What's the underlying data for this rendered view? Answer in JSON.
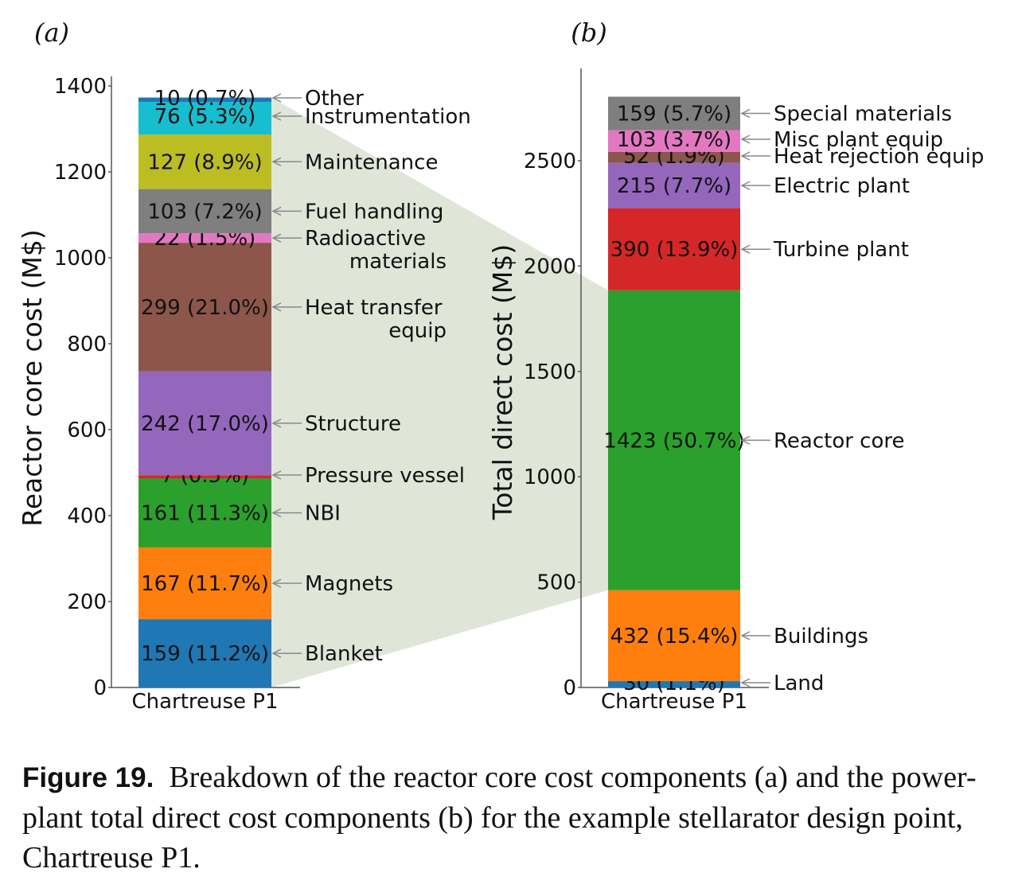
{
  "chart_data": [
    {
      "type": "bar",
      "stacked": true,
      "panel": "(a)",
      "title": "",
      "xlabel": "",
      "ylabel": "Reactor core cost (M$)",
      "categories": [
        "Chartreuse P1"
      ],
      "ylim": [
        0,
        1400
      ],
      "yticks": [
        0,
        200,
        400,
        600,
        800,
        1000,
        1200,
        1400
      ],
      "grid": false,
      "series": [
        {
          "name": "Blanket",
          "values": [
            159
          ],
          "pct": "11.2%",
          "color": "#1f77b4",
          "label_lines": [
            "Blanket"
          ]
        },
        {
          "name": "Magnets",
          "values": [
            167
          ],
          "pct": "11.7%",
          "color": "#ff7f0e",
          "label_lines": [
            "Magnets"
          ]
        },
        {
          "name": "NBI",
          "values": [
            161
          ],
          "pct": "11.3%",
          "color": "#2ca02c",
          "label_lines": [
            "NBI"
          ]
        },
        {
          "name": "Pressure vessel",
          "values": [
            7
          ],
          "pct": "0.5%",
          "color": "#d62728",
          "label_lines": [
            "Pressure vessel"
          ]
        },
        {
          "name": "Structure",
          "values": [
            242
          ],
          "pct": "17.0%",
          "color": "#9467bd",
          "label_lines": [
            "Structure"
          ]
        },
        {
          "name": "Heat transfer equip",
          "values": [
            299
          ],
          "pct": "21.0%",
          "color": "#8c564b",
          "label_lines": [
            "Heat transfer",
            "equip"
          ]
        },
        {
          "name": "Radioactive materials",
          "values": [
            22
          ],
          "pct": "1.5%",
          "color": "#e377c2",
          "label_lines": [
            "Radioactive",
            "materials"
          ]
        },
        {
          "name": "Fuel handling",
          "values": [
            103
          ],
          "pct": "7.2%",
          "color": "#7f7f7f",
          "label_lines": [
            "Fuel handling"
          ]
        },
        {
          "name": "Maintenance",
          "values": [
            127
          ],
          "pct": "8.9%",
          "color": "#bcbd22",
          "label_lines": [
            "Maintenance"
          ]
        },
        {
          "name": "Instrumentation",
          "values": [
            76
          ],
          "pct": "5.3%",
          "color": "#17becf",
          "label_lines": [
            "Instrumentation"
          ]
        },
        {
          "name": "Other",
          "values": [
            10
          ],
          "pct": "0.7%",
          "color": "#1f77b4",
          "label_lines": [
            "Other"
          ]
        }
      ]
    },
    {
      "type": "bar",
      "stacked": true,
      "panel": "(b)",
      "title": "",
      "xlabel": "",
      "ylabel": "Total direct cost (M$)",
      "categories": [
        "Chartreuse P1"
      ],
      "ylim": [
        0,
        2700
      ],
      "yticks": [
        0,
        500,
        1000,
        1500,
        2000,
        2500
      ],
      "grid": false,
      "series": [
        {
          "name": "Land",
          "values": [
            30
          ],
          "pct": "1.1%",
          "color": "#1f77b4",
          "label_lines": [
            "Land"
          ]
        },
        {
          "name": "Buildings",
          "values": [
            432
          ],
          "pct": "15.4%",
          "color": "#ff7f0e",
          "label_lines": [
            "Buildings"
          ]
        },
        {
          "name": "Reactor core",
          "values": [
            1423
          ],
          "pct": "50.7%",
          "color": "#2ca02c",
          "label_lines": [
            "Reactor core"
          ]
        },
        {
          "name": "Turbine plant",
          "values": [
            390
          ],
          "pct": "13.9%",
          "color": "#d62728",
          "label_lines": [
            "Turbine plant"
          ]
        },
        {
          "name": "Electric plant",
          "values": [
            215
          ],
          "pct": "7.7%",
          "color": "#9467bd",
          "label_lines": [
            "Electric plant"
          ]
        },
        {
          "name": "Heat rejection equip",
          "values": [
            52
          ],
          "pct": "1.9%",
          "color": "#8c564b",
          "label_lines": [
            "Heat rejection equip"
          ]
        },
        {
          "name": "Misc plant equip",
          "values": [
            103
          ],
          "pct": "3.7%",
          "color": "#e377c2",
          "label_lines": [
            "Misc plant equip"
          ]
        },
        {
          "name": "Special materials",
          "values": [
            159
          ],
          "pct": "5.7%",
          "color": "#7f7f7f",
          "label_lines": [
            "Special materials"
          ]
        }
      ]
    }
  ],
  "connector": {
    "from_panel": "(a)",
    "to_series": "Reactor core",
    "color": "#dfe6d8"
  },
  "caption": {
    "figure_number": "Figure 19.",
    "text": "Breakdown of the reactor core cost components (a) and the power-plant total direct cost components (b) for the example stellarator design point, Chartreuse P1."
  }
}
